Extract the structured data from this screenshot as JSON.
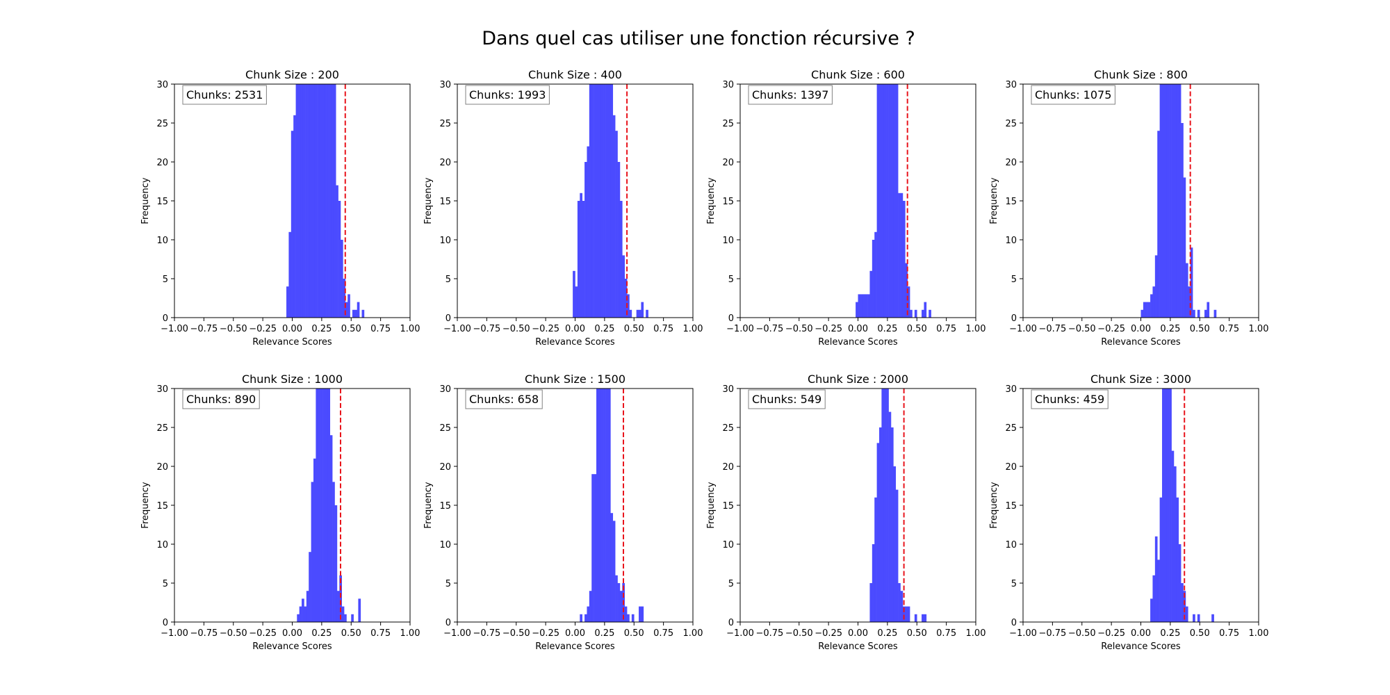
{
  "chart_data": {
    "type": "histogram",
    "title": "Dans quel cas utiliser une fonction récursive ?",
    "colors": {
      "bar": "#4b4bff",
      "threshold": "#e8141c"
    },
    "panels": [
      {
        "title": "Chunk Size : 200",
        "annotation": "Chunks: 2531",
        "threshold": 0.45,
        "bins": [
          [
            -0.05,
            -0.03,
            4
          ],
          [
            -0.03,
            -0.01,
            11
          ],
          [
            -0.01,
            0.01,
            24
          ],
          [
            0.01,
            0.03,
            26
          ],
          [
            0.03,
            0.05,
            30
          ],
          [
            0.05,
            0.07,
            30
          ],
          [
            0.07,
            0.09,
            30
          ],
          [
            0.09,
            0.11,
            30
          ],
          [
            0.11,
            0.13,
            30
          ],
          [
            0.13,
            0.15,
            30
          ],
          [
            0.15,
            0.17,
            30
          ],
          [
            0.17,
            0.19,
            30
          ],
          [
            0.19,
            0.21,
            30
          ],
          [
            0.21,
            0.23,
            30
          ],
          [
            0.23,
            0.25,
            30
          ],
          [
            0.25,
            0.27,
            30
          ],
          [
            0.27,
            0.29,
            30
          ],
          [
            0.29,
            0.31,
            30
          ],
          [
            0.31,
            0.33,
            30
          ],
          [
            0.33,
            0.35,
            30
          ],
          [
            0.35,
            0.37,
            30
          ],
          [
            0.37,
            0.39,
            17
          ],
          [
            0.39,
            0.41,
            15
          ],
          [
            0.41,
            0.43,
            10
          ],
          [
            0.43,
            0.45,
            5
          ],
          [
            0.45,
            0.47,
            2
          ],
          [
            0.47,
            0.49,
            3
          ],
          [
            0.51,
            0.53,
            1
          ],
          [
            0.53,
            0.55,
            1
          ],
          [
            0.55,
            0.57,
            2
          ],
          [
            0.59,
            0.61,
            1
          ]
        ]
      },
      {
        "title": "Chunk Size : 400",
        "annotation": "Chunks: 1993",
        "threshold": 0.44,
        "bins": [
          [
            -0.02,
            0.0,
            6
          ],
          [
            0.0,
            0.02,
            4
          ],
          [
            0.02,
            0.04,
            15
          ],
          [
            0.04,
            0.06,
            16
          ],
          [
            0.06,
            0.08,
            15
          ],
          [
            0.08,
            0.1,
            20
          ],
          [
            0.1,
            0.12,
            22
          ],
          [
            0.12,
            0.14,
            30
          ],
          [
            0.14,
            0.16,
            30
          ],
          [
            0.16,
            0.18,
            30
          ],
          [
            0.18,
            0.2,
            30
          ],
          [
            0.2,
            0.22,
            30
          ],
          [
            0.22,
            0.24,
            30
          ],
          [
            0.24,
            0.26,
            30
          ],
          [
            0.26,
            0.28,
            30
          ],
          [
            0.28,
            0.3,
            30
          ],
          [
            0.3,
            0.32,
            30
          ],
          [
            0.32,
            0.34,
            26
          ],
          [
            0.34,
            0.36,
            24
          ],
          [
            0.36,
            0.38,
            20
          ],
          [
            0.38,
            0.4,
            15
          ],
          [
            0.4,
            0.42,
            8
          ],
          [
            0.42,
            0.44,
            5
          ],
          [
            0.44,
            0.46,
            3
          ],
          [
            0.46,
            0.48,
            1
          ],
          [
            0.52,
            0.54,
            1
          ],
          [
            0.54,
            0.56,
            1
          ],
          [
            0.56,
            0.58,
            2
          ],
          [
            0.6,
            0.62,
            1
          ]
        ]
      },
      {
        "title": "Chunk Size : 600",
        "annotation": "Chunks: 1397",
        "threshold": 0.42,
        "bins": [
          [
            -0.02,
            0.0,
            2
          ],
          [
            0.0,
            0.02,
            3
          ],
          [
            0.02,
            0.04,
            3
          ],
          [
            0.04,
            0.06,
            3
          ],
          [
            0.06,
            0.08,
            3
          ],
          [
            0.08,
            0.1,
            3
          ],
          [
            0.1,
            0.12,
            6
          ],
          [
            0.12,
            0.14,
            10
          ],
          [
            0.14,
            0.16,
            11
          ],
          [
            0.16,
            0.18,
            30
          ],
          [
            0.18,
            0.2,
            30
          ],
          [
            0.2,
            0.22,
            30
          ],
          [
            0.22,
            0.24,
            30
          ],
          [
            0.24,
            0.26,
            30
          ],
          [
            0.26,
            0.28,
            30
          ],
          [
            0.28,
            0.3,
            30
          ],
          [
            0.3,
            0.32,
            30
          ],
          [
            0.32,
            0.34,
            30
          ],
          [
            0.34,
            0.36,
            16
          ],
          [
            0.36,
            0.38,
            16
          ],
          [
            0.38,
            0.4,
            15
          ],
          [
            0.4,
            0.42,
            7
          ],
          [
            0.42,
            0.44,
            4
          ],
          [
            0.44,
            0.46,
            1
          ],
          [
            0.48,
            0.5,
            1
          ],
          [
            0.54,
            0.56,
            1
          ],
          [
            0.56,
            0.58,
            2
          ],
          [
            0.6,
            0.62,
            1
          ]
        ]
      },
      {
        "title": "Chunk Size : 800",
        "annotation": "Chunks: 1075",
        "threshold": 0.42,
        "bins": [
          [
            0.0,
            0.02,
            1
          ],
          [
            0.02,
            0.04,
            2
          ],
          [
            0.04,
            0.06,
            2
          ],
          [
            0.06,
            0.08,
            2
          ],
          [
            0.08,
            0.1,
            3
          ],
          [
            0.1,
            0.12,
            4
          ],
          [
            0.12,
            0.14,
            8
          ],
          [
            0.14,
            0.16,
            24
          ],
          [
            0.16,
            0.18,
            30
          ],
          [
            0.18,
            0.2,
            30
          ],
          [
            0.2,
            0.22,
            30
          ],
          [
            0.22,
            0.24,
            30
          ],
          [
            0.24,
            0.26,
            30
          ],
          [
            0.26,
            0.28,
            30
          ],
          [
            0.28,
            0.3,
            30
          ],
          [
            0.3,
            0.32,
            30
          ],
          [
            0.32,
            0.34,
            30
          ],
          [
            0.34,
            0.36,
            25
          ],
          [
            0.36,
            0.38,
            18
          ],
          [
            0.38,
            0.4,
            7
          ],
          [
            0.4,
            0.42,
            4
          ],
          [
            0.42,
            0.44,
            9
          ],
          [
            0.44,
            0.46,
            1
          ],
          [
            0.48,
            0.5,
            1
          ],
          [
            0.54,
            0.56,
            1
          ],
          [
            0.56,
            0.58,
            2
          ],
          [
            0.62,
            0.64,
            1
          ]
        ]
      },
      {
        "title": "Chunk Size : 1000",
        "annotation": "Chunks: 890",
        "threshold": 0.41,
        "bins": [
          [
            0.04,
            0.06,
            1
          ],
          [
            0.06,
            0.08,
            2
          ],
          [
            0.08,
            0.1,
            3
          ],
          [
            0.1,
            0.12,
            2
          ],
          [
            0.12,
            0.14,
            4
          ],
          [
            0.14,
            0.16,
            9
          ],
          [
            0.16,
            0.18,
            18
          ],
          [
            0.18,
            0.2,
            21
          ],
          [
            0.2,
            0.22,
            30
          ],
          [
            0.22,
            0.24,
            30
          ],
          [
            0.24,
            0.26,
            30
          ],
          [
            0.26,
            0.28,
            30
          ],
          [
            0.28,
            0.3,
            30
          ],
          [
            0.3,
            0.32,
            30
          ],
          [
            0.32,
            0.34,
            24
          ],
          [
            0.34,
            0.36,
            18
          ],
          [
            0.36,
            0.38,
            15
          ],
          [
            0.38,
            0.4,
            4
          ],
          [
            0.4,
            0.42,
            6
          ],
          [
            0.42,
            0.44,
            2
          ],
          [
            0.44,
            0.46,
            1
          ],
          [
            0.5,
            0.52,
            1
          ],
          [
            0.56,
            0.58,
            3
          ]
        ]
      },
      {
        "title": "Chunk Size : 1500",
        "annotation": "Chunks: 658",
        "threshold": 0.41,
        "bins": [
          [
            0.04,
            0.06,
            1
          ],
          [
            0.08,
            0.1,
            1
          ],
          [
            0.1,
            0.12,
            2
          ],
          [
            0.12,
            0.14,
            4
          ],
          [
            0.14,
            0.16,
            19
          ],
          [
            0.16,
            0.18,
            19
          ],
          [
            0.18,
            0.2,
            30
          ],
          [
            0.2,
            0.22,
            30
          ],
          [
            0.22,
            0.24,
            30
          ],
          [
            0.24,
            0.26,
            30
          ],
          [
            0.26,
            0.28,
            30
          ],
          [
            0.28,
            0.3,
            30
          ],
          [
            0.3,
            0.32,
            14
          ],
          [
            0.32,
            0.34,
            13
          ],
          [
            0.34,
            0.36,
            6
          ],
          [
            0.36,
            0.38,
            5
          ],
          [
            0.38,
            0.4,
            4
          ],
          [
            0.4,
            0.42,
            5
          ],
          [
            0.42,
            0.44,
            2
          ],
          [
            0.44,
            0.46,
            1
          ],
          [
            0.48,
            0.5,
            1
          ],
          [
            0.54,
            0.56,
            2
          ],
          [
            0.56,
            0.58,
            2
          ]
        ]
      },
      {
        "title": "Chunk Size : 2000",
        "annotation": "Chunks: 549",
        "threshold": 0.39,
        "bins": [
          [
            0.1,
            0.12,
            5
          ],
          [
            0.12,
            0.14,
            10
          ],
          [
            0.14,
            0.16,
            16
          ],
          [
            0.16,
            0.18,
            23
          ],
          [
            0.18,
            0.2,
            25
          ],
          [
            0.2,
            0.22,
            30
          ],
          [
            0.22,
            0.24,
            30
          ],
          [
            0.24,
            0.26,
            30
          ],
          [
            0.26,
            0.28,
            27
          ],
          [
            0.28,
            0.3,
            25
          ],
          [
            0.3,
            0.32,
            20
          ],
          [
            0.32,
            0.34,
            17
          ],
          [
            0.34,
            0.36,
            5
          ],
          [
            0.36,
            0.38,
            4
          ],
          [
            0.38,
            0.4,
            2
          ],
          [
            0.4,
            0.42,
            2
          ],
          [
            0.42,
            0.44,
            2
          ],
          [
            0.48,
            0.5,
            1
          ],
          [
            0.54,
            0.56,
            1
          ],
          [
            0.56,
            0.58,
            1
          ]
        ]
      },
      {
        "title": "Chunk Size : 3000",
        "annotation": "Chunks: 459",
        "threshold": 0.37,
        "bins": [
          [
            0.08,
            0.1,
            3
          ],
          [
            0.1,
            0.12,
            6
          ],
          [
            0.12,
            0.14,
            11
          ],
          [
            0.14,
            0.16,
            8
          ],
          [
            0.16,
            0.18,
            16
          ],
          [
            0.18,
            0.2,
            30
          ],
          [
            0.2,
            0.22,
            30
          ],
          [
            0.22,
            0.24,
            30
          ],
          [
            0.24,
            0.26,
            30
          ],
          [
            0.26,
            0.28,
            22
          ],
          [
            0.28,
            0.3,
            20
          ],
          [
            0.3,
            0.32,
            16
          ],
          [
            0.32,
            0.34,
            10
          ],
          [
            0.34,
            0.36,
            5
          ],
          [
            0.36,
            0.38,
            4
          ],
          [
            0.38,
            0.4,
            2
          ],
          [
            0.44,
            0.46,
            1
          ],
          [
            0.48,
            0.5,
            1
          ],
          [
            0.6,
            0.62,
            1
          ]
        ]
      }
    ],
    "xlabel": "Relevance Scores",
    "ylabel": "Frequency",
    "xlim": [
      -1.0,
      1.0
    ],
    "ylim": [
      0,
      30
    ],
    "xticks": [
      "−1.00",
      "−0.75",
      "−0.50",
      "−0.25",
      "0.00",
      "0.25",
      "0.50",
      "0.75",
      "1.00"
    ],
    "yticks": [
      "0",
      "5",
      "10",
      "15",
      "20",
      "25",
      "30"
    ]
  }
}
